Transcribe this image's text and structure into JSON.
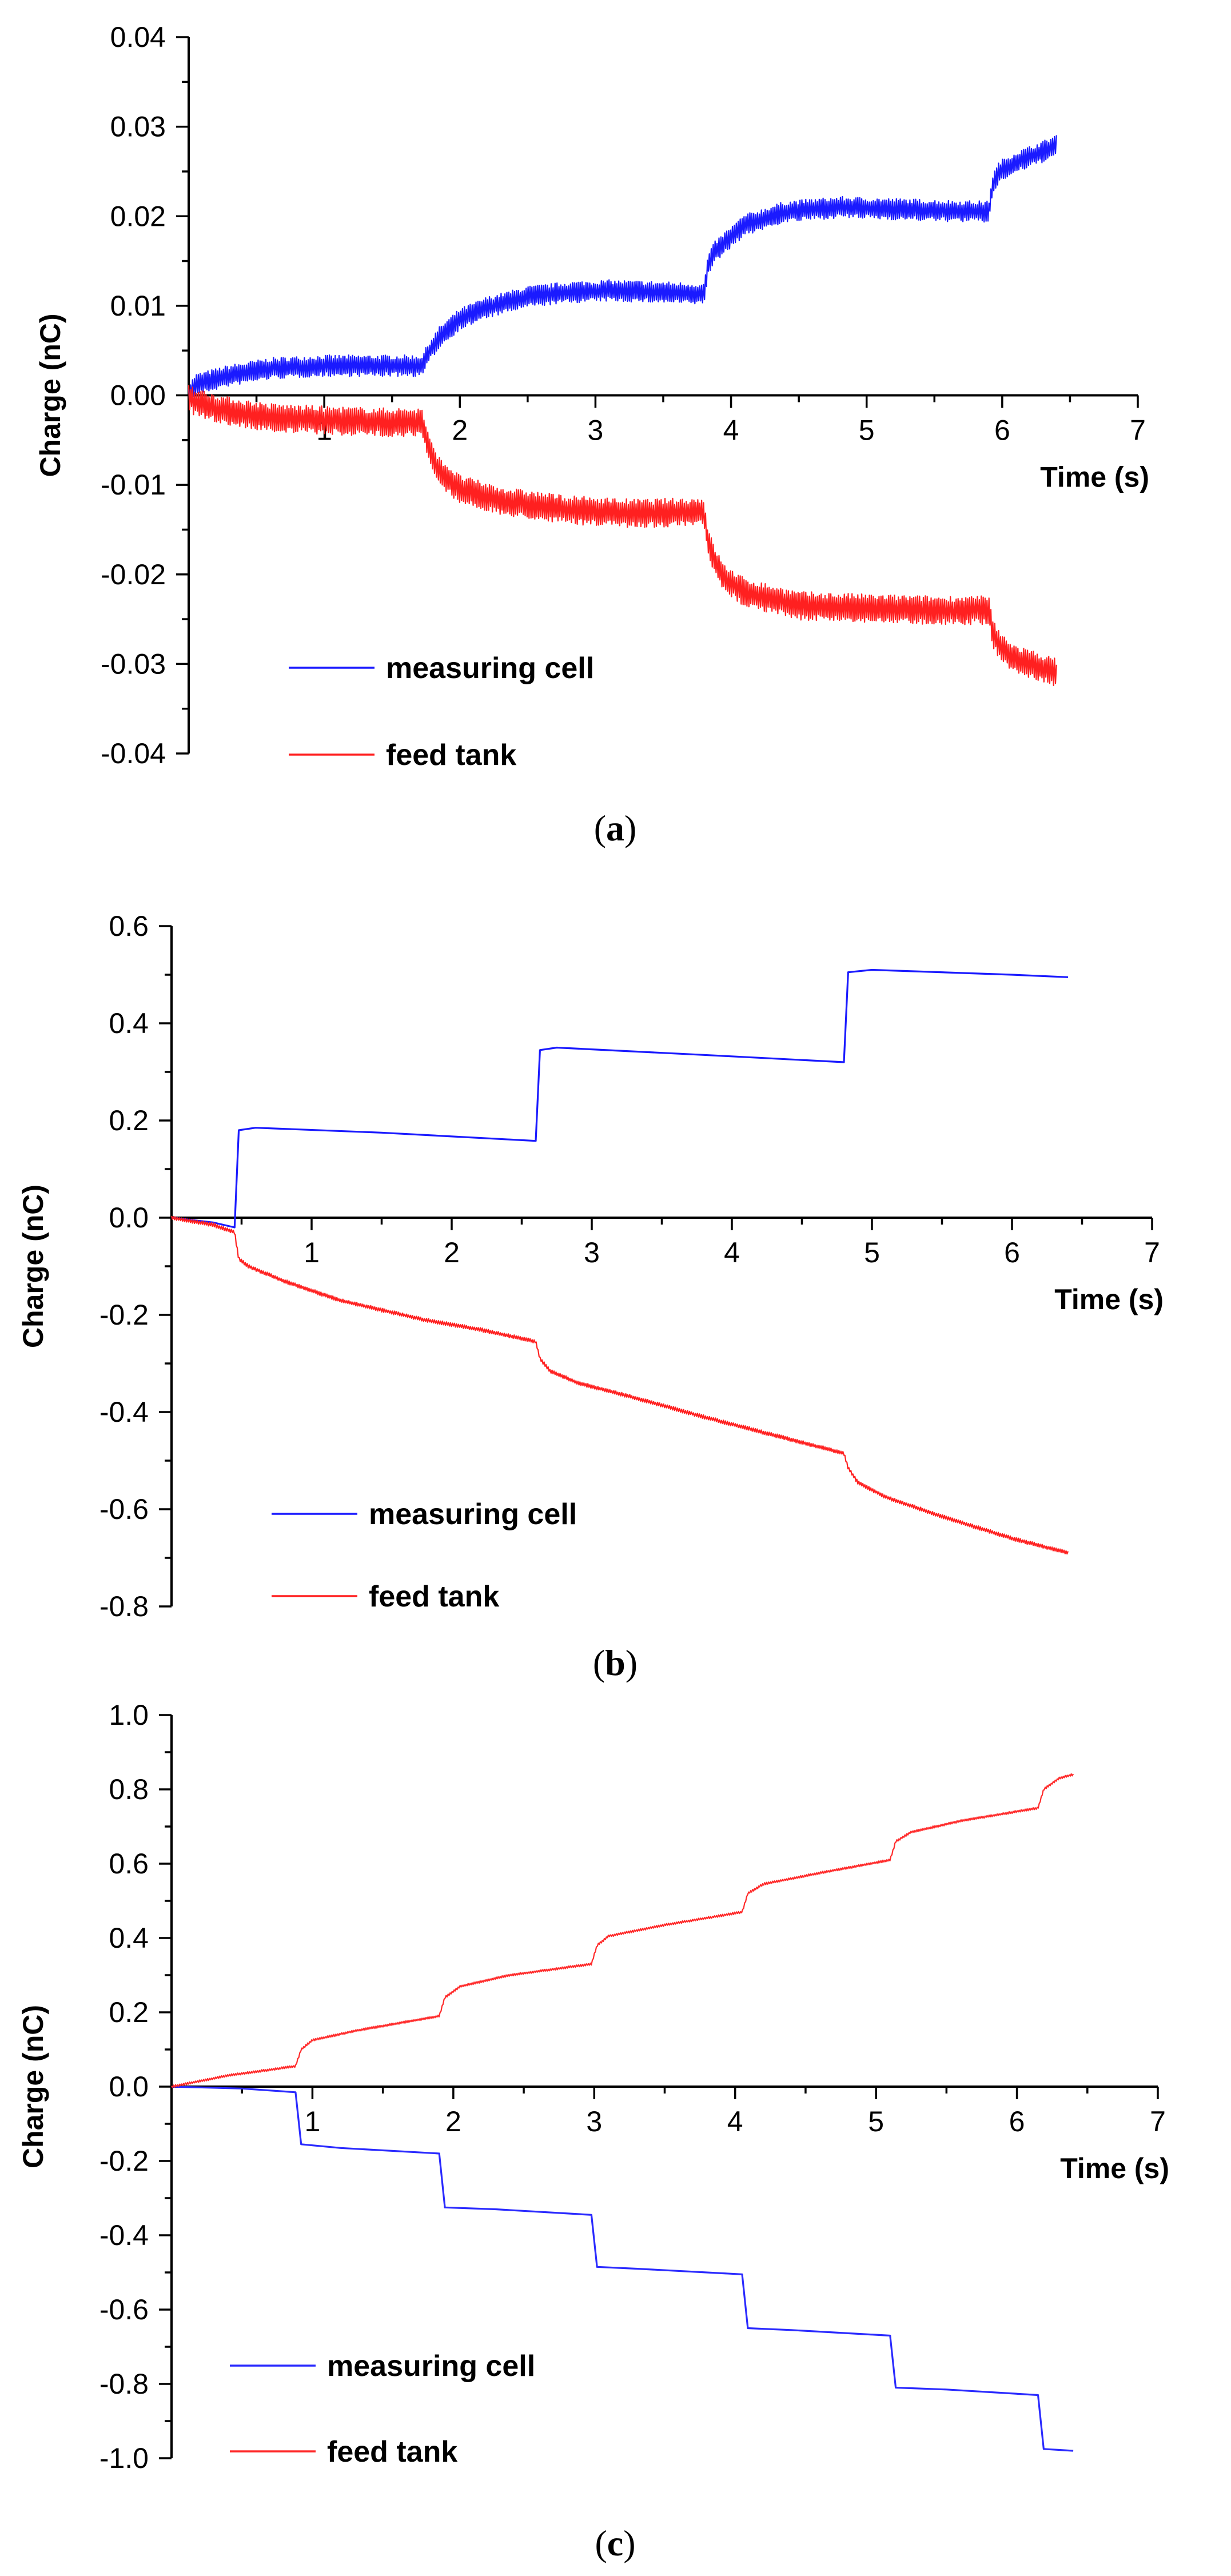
{
  "chart_data": [
    {
      "id": "a",
      "type": "line",
      "caption_letter": "a",
      "xlabel": "Time (s)",
      "ylabel": "Charge (nC)",
      "xlim": [
        0,
        7
      ],
      "ylim": [
        -0.04,
        0.04
      ],
      "xticks": [
        1,
        2,
        3,
        4,
        5,
        6,
        7
      ],
      "xtick_labels": [
        "1",
        "2",
        "3",
        "4",
        "5",
        "6",
        "7"
      ],
      "yticks": [
        -0.04,
        -0.03,
        -0.02,
        -0.01,
        0.0,
        0.01,
        0.02,
        0.03,
        0.04
      ],
      "ytick_labels": [
        "-0.04",
        "-0.03",
        "-0.02",
        "-0.01",
        "0.00",
        "0.01",
        "0.02",
        "0.03",
        "0.04"
      ],
      "legend": [
        "measuring cell",
        "feed tank"
      ],
      "series": [
        {
          "name": "measuring cell",
          "color": "#1a1aff",
          "noise": 0.0012,
          "x": [
            0.0,
            0.05,
            0.3,
            0.6,
            1.0,
            1.4,
            1.72,
            1.78,
            1.85,
            2.0,
            2.2,
            2.5,
            2.8,
            3.1,
            3.5,
            3.8,
            3.83,
            3.88,
            3.95,
            4.1,
            4.4,
            4.8,
            5.2,
            5.6,
            5.9,
            5.93,
            5.98,
            6.1,
            6.3,
            6.4
          ],
          "y": [
            0.0,
            0.0012,
            0.0022,
            0.003,
            0.0033,
            0.0033,
            0.0033,
            0.005,
            0.0065,
            0.0085,
            0.0098,
            0.011,
            0.0115,
            0.0117,
            0.0115,
            0.0113,
            0.0145,
            0.016,
            0.017,
            0.019,
            0.0205,
            0.021,
            0.0208,
            0.0206,
            0.0205,
            0.0235,
            0.025,
            0.026,
            0.0272,
            0.028
          ]
        },
        {
          "name": "feed tank",
          "color": "#ff2020",
          "noise": 0.0016,
          "x": [
            0.0,
            0.05,
            0.3,
            0.6,
            1.0,
            1.4,
            1.72,
            1.78,
            1.85,
            2.0,
            2.3,
            2.8,
            3.3,
            3.8,
            3.83,
            3.88,
            3.95,
            4.1,
            4.5,
            5.0,
            5.5,
            5.9,
            5.93,
            5.98,
            6.1,
            6.3,
            6.4
          ],
          "y": [
            0.0,
            -0.0008,
            -0.0018,
            -0.0025,
            -0.0028,
            -0.003,
            -0.003,
            -0.0065,
            -0.0085,
            -0.0105,
            -0.0118,
            -0.0128,
            -0.0132,
            -0.013,
            -0.0165,
            -0.0185,
            -0.0205,
            -0.022,
            -0.0235,
            -0.0238,
            -0.024,
            -0.024,
            -0.0265,
            -0.028,
            -0.0295,
            -0.0305,
            -0.031
          ]
        }
      ]
    },
    {
      "id": "b",
      "type": "line",
      "caption_letter": "b",
      "xlabel": "Time (s)",
      "ylabel": "Charge (nC)",
      "xlim": [
        0,
        7
      ],
      "ylim": [
        -0.8,
        0.6
      ],
      "xticks": [
        1,
        2,
        3,
        4,
        5,
        6,
        7
      ],
      "xtick_labels": [
        "1",
        "2",
        "3",
        "4",
        "5",
        "6",
        "7"
      ],
      "yticks": [
        -0.8,
        -0.6,
        -0.4,
        -0.2,
        0.0,
        0.2,
        0.4,
        0.6
      ],
      "ytick_labels": [
        "-0.8",
        "-0.6",
        "-0.4",
        "-0.2",
        "0.0",
        "0.2",
        "0.4",
        "0.6"
      ],
      "legend": [
        "measuring cell",
        "feed tank"
      ],
      "series": [
        {
          "name": "measuring cell",
          "color": "#1a1aff",
          "noise": 0,
          "x": [
            0.0,
            0.3,
            0.45,
            0.48,
            0.6,
            1.5,
            2.6,
            2.63,
            2.75,
            3.8,
            4.8,
            4.83,
            5.0,
            6.0,
            6.4
          ],
          "y": [
            0.0,
            -0.01,
            -0.02,
            0.18,
            0.185,
            0.175,
            0.158,
            0.345,
            0.35,
            0.335,
            0.32,
            0.505,
            0.51,
            0.5,
            0.495
          ]
        },
        {
          "name": "feed tank",
          "color": "#ff2020",
          "noise": 0.004,
          "x": [
            0.0,
            0.3,
            0.45,
            0.48,
            0.55,
            0.8,
            1.2,
            1.8,
            2.2,
            2.6,
            2.63,
            2.7,
            2.9,
            3.3,
            3.8,
            4.4,
            4.8,
            4.83,
            4.9,
            5.1,
            5.5,
            6.0,
            6.4
          ],
          "y": [
            0.0,
            -0.015,
            -0.03,
            -0.085,
            -0.1,
            -0.13,
            -0.17,
            -0.21,
            -0.23,
            -0.255,
            -0.29,
            -0.315,
            -0.34,
            -0.37,
            -0.41,
            -0.455,
            -0.485,
            -0.515,
            -0.545,
            -0.575,
            -0.615,
            -0.66,
            -0.69
          ]
        }
      ]
    },
    {
      "id": "c",
      "type": "line",
      "caption_letter": "c",
      "xlabel": "Time (s)",
      "ylabel": "Charge (nC)",
      "xlim": [
        0,
        7
      ],
      "ylim": [
        -1.0,
        1.0
      ],
      "xticks": [
        1,
        2,
        3,
        4,
        5,
        6,
        7
      ],
      "xtick_labels": [
        "1",
        "2",
        "3",
        "4",
        "5",
        "6",
        "7"
      ],
      "yticks": [
        -1.0,
        -0.8,
        -0.6,
        -0.4,
        -0.2,
        0.0,
        0.2,
        0.4,
        0.6,
        0.8,
        1.0
      ],
      "ytick_labels": [
        "-1.0",
        "-0.8",
        "-0.6",
        "-0.4",
        "-0.2",
        "0.0",
        "0.2",
        "0.4",
        "0.6",
        "0.8",
        "1.0"
      ],
      "legend": [
        "measuring cell",
        "feed tank"
      ],
      "series": [
        {
          "name": "measuring cell",
          "color": "#2a2aff",
          "noise": 0,
          "x": [
            0.0,
            0.5,
            0.88,
            0.92,
            1.2,
            1.9,
            1.94,
            2.3,
            2.98,
            3.02,
            3.3,
            4.05,
            4.09,
            4.4,
            5.1,
            5.14,
            5.5,
            6.15,
            6.19,
            6.4
          ],
          "y": [
            0.0,
            -0.005,
            -0.015,
            -0.155,
            -0.165,
            -0.18,
            -0.325,
            -0.33,
            -0.345,
            -0.485,
            -0.49,
            -0.505,
            -0.65,
            -0.655,
            -0.67,
            -0.81,
            -0.815,
            -0.83,
            -0.975,
            -0.98
          ]
        },
        {
          "name": "feed tank",
          "color": "#ff2a2a",
          "noise": 0.003,
          "x": [
            0.0,
            0.4,
            0.88,
            0.92,
            1.0,
            1.3,
            1.9,
            1.94,
            2.05,
            2.4,
            2.98,
            3.02,
            3.1,
            3.5,
            4.05,
            4.09,
            4.2,
            4.6,
            5.1,
            5.14,
            5.25,
            5.6,
            6.15,
            6.19,
            6.3,
            6.4
          ],
          "y": [
            0.0,
            0.03,
            0.055,
            0.1,
            0.125,
            0.15,
            0.19,
            0.24,
            0.27,
            0.3,
            0.33,
            0.38,
            0.405,
            0.435,
            0.47,
            0.52,
            0.545,
            0.575,
            0.61,
            0.66,
            0.685,
            0.715,
            0.75,
            0.8,
            0.83,
            0.84
          ]
        }
      ]
    }
  ]
}
